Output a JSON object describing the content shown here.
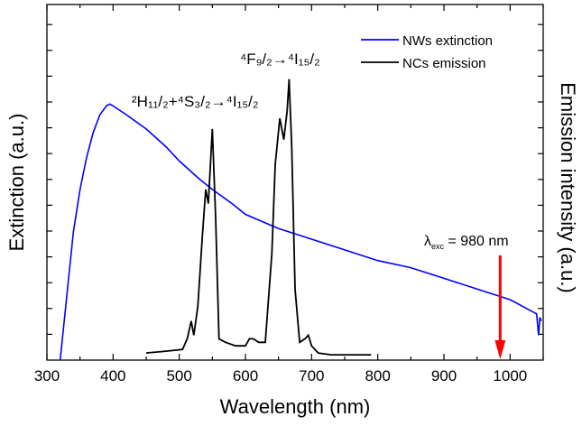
{
  "chart_data": {
    "type": "line",
    "xlabel": "Wavelength (nm)",
    "ylabel_left": "Extinction (a.u.)",
    "ylabel_right": "Emission intensity (a.u.)",
    "xlim": [
      300,
      1050
    ],
    "ylim": [
      0,
      1
    ],
    "xticks": [
      300,
      400,
      500,
      600,
      700,
      800,
      900,
      1000
    ],
    "legend": {
      "placement": "top-right",
      "entries": [
        "NWs extinction",
        "NCs emission"
      ]
    },
    "series": [
      {
        "name": "NWs extinction",
        "color": "#0000ff",
        "x": [
          320,
          330,
          340,
          350,
          360,
          370,
          380,
          390,
          395,
          400,
          420,
          450,
          480,
          500,
          530,
          550,
          580,
          600,
          650,
          700,
          750,
          800,
          850,
          900,
          950,
          1000,
          1030,
          1040,
          1043,
          1045,
          1047
        ],
        "y": [
          0.0,
          0.18,
          0.36,
          0.48,
          0.57,
          0.64,
          0.69,
          0.715,
          0.72,
          0.715,
          0.69,
          0.65,
          0.6,
          0.56,
          0.51,
          0.48,
          0.44,
          0.41,
          0.37,
          0.34,
          0.31,
          0.28,
          0.26,
          0.23,
          0.2,
          0.17,
          0.14,
          0.13,
          0.07,
          0.12,
          0.11
        ]
      },
      {
        "name": "NCs emission",
        "color": "#000000",
        "x": [
          450,
          480,
          505,
          512,
          518,
          522,
          528,
          535,
          540,
          544,
          550,
          555,
          560,
          570,
          585,
          600,
          606,
          612,
          620,
          630,
          640,
          645,
          652,
          658,
          663,
          666,
          670,
          675,
          682,
          690,
          695,
          700,
          710,
          730,
          760,
          790
        ],
        "y": [
          0.02,
          0.025,
          0.03,
          0.06,
          0.11,
          0.07,
          0.15,
          0.35,
          0.48,
          0.44,
          0.65,
          0.4,
          0.06,
          0.05,
          0.04,
          0.04,
          0.06,
          0.06,
          0.05,
          0.05,
          0.3,
          0.55,
          0.68,
          0.62,
          0.7,
          0.79,
          0.6,
          0.2,
          0.05,
          0.06,
          0.07,
          0.04,
          0.02,
          0.015,
          0.015,
          0.015
        ]
      }
    ],
    "annotations": [
      {
        "text": "²H₁₁/₂+⁴S₃/₂→⁴I₁₅/₂",
        "parts": [
          "2",
          "H",
          "11/2",
          "+",
          "4",
          "S",
          "3/2",
          "→",
          "4",
          "I",
          "15/2"
        ]
      },
      {
        "text": "⁴F₉/₂→⁴I₁₅/₂",
        "parts": [
          "4",
          "F",
          "9/2",
          "→",
          "4",
          "I",
          "15/2"
        ]
      },
      {
        "text": "λexc = 980 nm",
        "parts": [
          "λ",
          "exc",
          " = 980 nm"
        ],
        "arrow_x": 985,
        "arrow_color": "#ff0000"
      }
    ]
  }
}
